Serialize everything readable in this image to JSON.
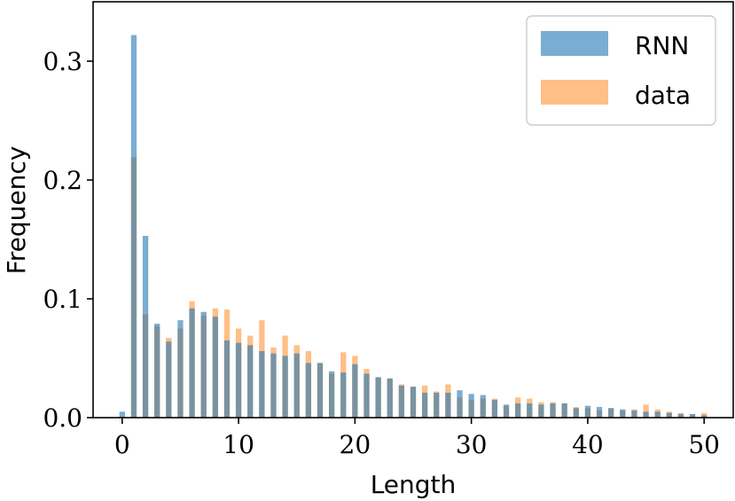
{
  "chart_data": {
    "type": "bar",
    "xlabel": "Length",
    "ylabel": "Frequency",
    "xlim": [
      -2.5,
      52.5
    ],
    "ylim": [
      0,
      0.35
    ],
    "x_ticks": [
      0,
      10,
      20,
      30,
      40,
      50
    ],
    "y_ticks": [
      0.0,
      0.1,
      0.2,
      0.3
    ],
    "x_tick_labels": [
      "0",
      "10",
      "20",
      "30",
      "40",
      "50"
    ],
    "y_tick_labels": [
      "0.0",
      "0.1",
      "0.2",
      "0.3"
    ],
    "legend_position": "top-right",
    "grid": false,
    "x": [
      0,
      1,
      2,
      3,
      4,
      5,
      6,
      7,
      8,
      9,
      10,
      11,
      12,
      13,
      14,
      15,
      16,
      17,
      18,
      19,
      20,
      21,
      22,
      23,
      24,
      25,
      26,
      27,
      28,
      29,
      30,
      31,
      32,
      33,
      34,
      35,
      36,
      37,
      38,
      39,
      40,
      41,
      42,
      43,
      44,
      45,
      46,
      47,
      48,
      49,
      50
    ],
    "series": [
      {
        "name": "RNN",
        "color": "#1f77b4",
        "values": [
          0.005,
          0.322,
          0.153,
          0.079,
          0.064,
          0.082,
          0.092,
          0.089,
          0.085,
          0.065,
          0.063,
          0.061,
          0.056,
          0.054,
          0.052,
          0.054,
          0.046,
          0.046,
          0.039,
          0.038,
          0.045,
          0.037,
          0.034,
          0.033,
          0.027,
          0.026,
          0.021,
          0.021,
          0.021,
          0.023,
          0.02,
          0.019,
          0.015,
          0.011,
          0.012,
          0.012,
          0.011,
          0.012,
          0.012,
          0.008,
          0.01,
          0.009,
          0.008,
          0.007,
          0.006,
          0.005,
          0.005,
          0.004,
          0.003,
          0.003,
          0.002
        ]
      },
      {
        "name": "data",
        "color": "#ff7f0e",
        "values": [
          0.0,
          0.219,
          0.087,
          0.077,
          0.067,
          0.075,
          0.098,
          0.086,
          0.092,
          0.091,
          0.075,
          0.069,
          0.082,
          0.059,
          0.069,
          0.061,
          0.056,
          0.046,
          0.037,
          0.055,
          0.052,
          0.041,
          0.034,
          0.033,
          0.028,
          0.026,
          0.027,
          0.022,
          0.028,
          0.017,
          0.015,
          0.016,
          0.016,
          0.01,
          0.017,
          0.016,
          0.013,
          0.013,
          0.012,
          0.009,
          0.008,
          0.006,
          0.008,
          0.006,
          0.007,
          0.011,
          0.007,
          0.005,
          0.004,
          0.003,
          0.004
        ]
      }
    ]
  }
}
